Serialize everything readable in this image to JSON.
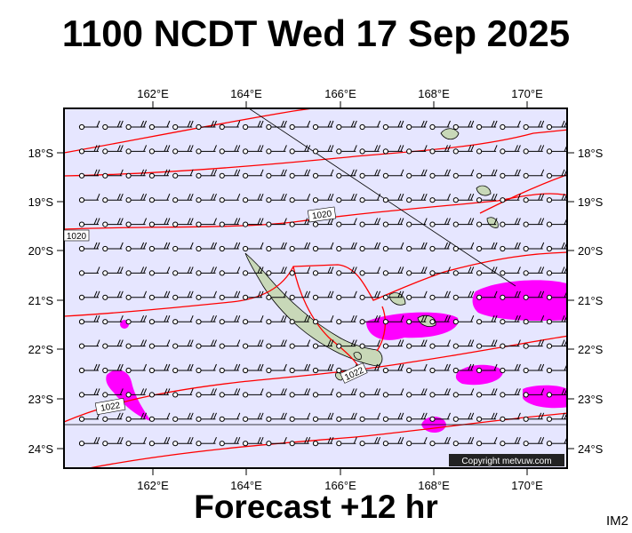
{
  "header": {
    "title": "1100 NCDT Wed 17 Sep 2025"
  },
  "footer": {
    "forecast": "Forecast +12 hr",
    "model": "IM2"
  },
  "map": {
    "lon_ticks": [
      "162°E",
      "164°E",
      "166°E",
      "168°E",
      "170°E"
    ],
    "lat_ticks": [
      "18°S",
      "19°S",
      "20°S",
      "21°S",
      "22°S",
      "23°S",
      "24°S"
    ],
    "isobar_labels": [
      "1020",
      "1020",
      "1022",
      "1022"
    ],
    "copyright": "Copyright metvuw.com",
    "colors": {
      "sea": "#e6e6ff",
      "isobar": "#ff0000",
      "rain": "#ff00ff",
      "land": "#c8d8b8"
    }
  }
}
